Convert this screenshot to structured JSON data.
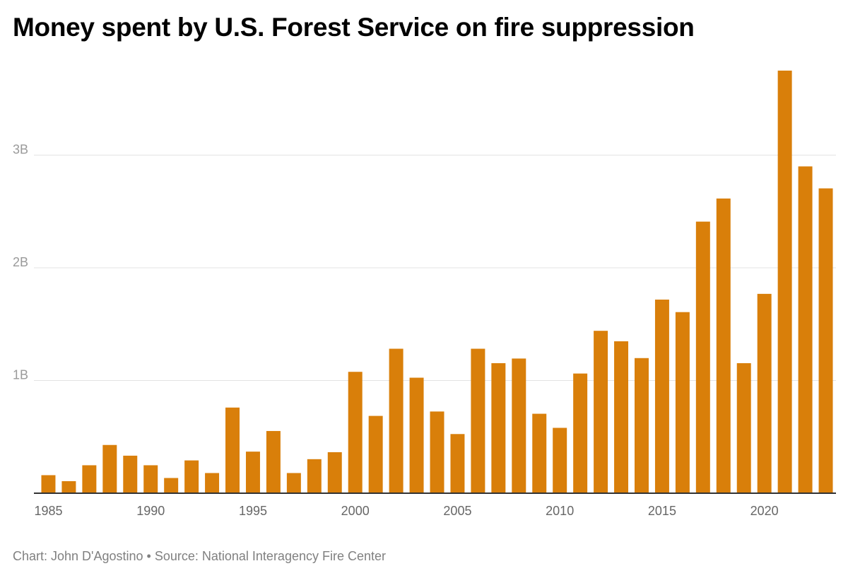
{
  "chart_data": {
    "type": "bar",
    "title": "Money spent by U.S. Forest Service on fire suppression",
    "xlabel": "",
    "ylabel": "",
    "bar_color": "#d97f0a",
    "grid": true,
    "legend": "none",
    "ylim": [
      0,
      3900000000
    ],
    "yticks": [
      {
        "value": 1000000000,
        "label": "1B"
      },
      {
        "value": 2000000000,
        "label": "2B"
      },
      {
        "value": 3000000000,
        "label": "3B"
      }
    ],
    "xticks": [
      1985,
      1990,
      1995,
      2000,
      2005,
      2010,
      2015,
      2020
    ],
    "categories": [
      1985,
      1986,
      1987,
      1988,
      1989,
      1990,
      1991,
      1992,
      1993,
      1994,
      1995,
      1996,
      1997,
      1998,
      1999,
      2000,
      2001,
      2002,
      2003,
      2004,
      2005,
      2006,
      2007,
      2008,
      2009,
      2010,
      2011,
      2012,
      2013,
      2014,
      2015,
      2016,
      2017,
      2018,
      2019,
      2020,
      2021,
      2022,
      2023
    ],
    "values": [
      160000000,
      107000000,
      248000000,
      428000000,
      333000000,
      248000000,
      135000000,
      291000000,
      179000000,
      760000000,
      369000000,
      552000000,
      179000000,
      302000000,
      364000000,
      1077000000,
      686000000,
      1282000000,
      1025000000,
      725000000,
      525000000,
      1282000000,
      1154000000,
      1195000000,
      705000000,
      580000000,
      1062000000,
      1441000000,
      1348000000,
      1199000000,
      1718000000,
      1607000000,
      2410000000,
      2615000000,
      1154000000,
      1769000000,
      3750000000,
      2900000000,
      2705000000
    ]
  },
  "footer": {
    "credit": "Chart: John D'Agostino • Source: National Interagency Fire Center"
  }
}
